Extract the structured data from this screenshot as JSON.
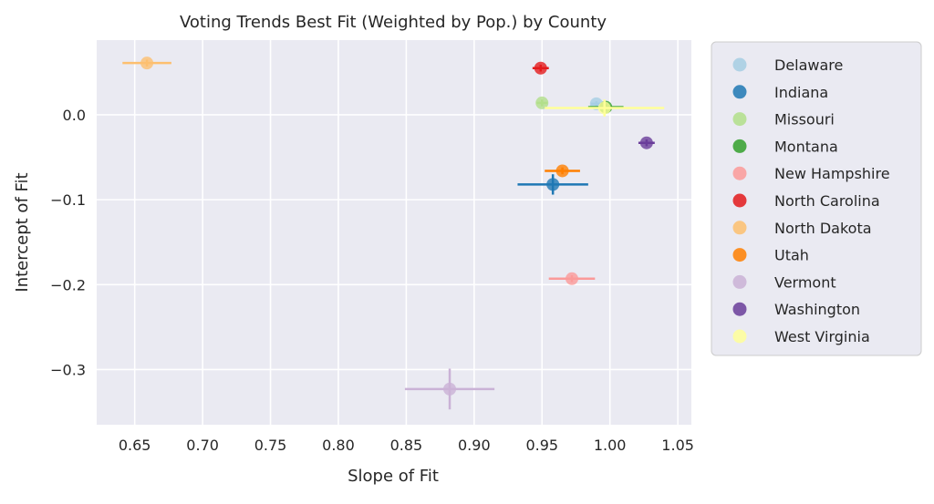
{
  "chart_data": {
    "type": "scatter",
    "title": "Voting Trends Best Fit (Weighted by Pop.) by County",
    "xlabel": "Slope of Fit",
    "ylabel": "Intercept of Fit",
    "xlim": [
      0.622,
      1.06
    ],
    "ylim": [
      -0.365,
      0.088
    ],
    "xticks": [
      0.65,
      0.7,
      0.75,
      0.8,
      0.85,
      0.9,
      0.95,
      1.0,
      1.05
    ],
    "xtick_labels": [
      "0.65",
      "0.70",
      "0.75",
      "0.80",
      "0.85",
      "0.90",
      "0.95",
      "1.00",
      "1.05"
    ],
    "yticks": [
      0.0,
      -0.1,
      -0.2,
      -0.3
    ],
    "ytick_labels": [
      "0.0",
      "−0.1",
      "−0.2",
      "−0.3"
    ],
    "grid": true,
    "legend_position": "outside-right",
    "series": [
      {
        "name": "Delaware",
        "color": "#a6cee3",
        "x": 0.99,
        "y": 0.013,
        "xerr": 0.004,
        "yerr": 0.003
      },
      {
        "name": "Indiana",
        "color": "#1f78b4",
        "x": 0.958,
        "y": -0.082,
        "xerr": 0.026,
        "yerr": 0.012
      },
      {
        "name": "Missouri",
        "color": "#b2df8a",
        "x": 0.95,
        "y": 0.014,
        "xerr": 0.004,
        "yerr": 0.004
      },
      {
        "name": "Montana",
        "color": "#33a02c",
        "x": 0.997,
        "y": 0.009,
        "xerr": 0.013,
        "yerr": 0.004
      },
      {
        "name": "New Hampshire",
        "color": "#fb9a99",
        "x": 0.972,
        "y": -0.193,
        "xerr": 0.017,
        "yerr": 0.004
      },
      {
        "name": "North Carolina",
        "color": "#e31a1c",
        "x": 0.949,
        "y": 0.055,
        "xerr": 0.006,
        "yerr": 0.004
      },
      {
        "name": "North Dakota",
        "color": "#fdbf6f",
        "x": 0.659,
        "y": 0.061,
        "xerr": 0.018,
        "yerr": 0.004
      },
      {
        "name": "Utah",
        "color": "#ff7f00",
        "x": 0.965,
        "y": -0.066,
        "xerr": 0.013,
        "yerr": 0.004
      },
      {
        "name": "Vermont",
        "color": "#cab2d6",
        "x": 0.882,
        "y": -0.323,
        "xerr": 0.033,
        "yerr": 0.024
      },
      {
        "name": "Washington",
        "color": "#6a3d9a",
        "x": 1.027,
        "y": -0.033,
        "xerr": 0.006,
        "yerr": 0.004
      },
      {
        "name": "West Virginia",
        "color": "#ffff99",
        "x": 0.996,
        "y": 0.008,
        "xerr": 0.044,
        "yerr": 0.01
      }
    ]
  }
}
